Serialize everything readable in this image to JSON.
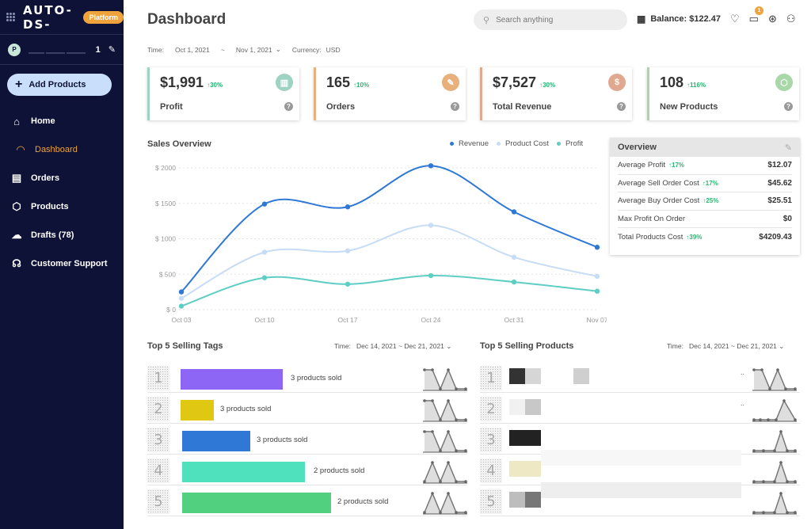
{
  "sidebar": {
    "logo": "AUTO-DS-",
    "badge": "Platform",
    "user_avatar": "P",
    "user_count": "1",
    "add_button": "Add Products",
    "nav": [
      {
        "label": "Home",
        "icon": "home-icon"
      },
      {
        "label": "Dashboard",
        "icon": "gauge-icon"
      },
      {
        "label": "Orders",
        "icon": "orders-icon"
      },
      {
        "label": "Products",
        "icon": "box-icon"
      },
      {
        "label": "Drafts (78)",
        "icon": "cloud-upload-icon"
      },
      {
        "label": "Customer Support",
        "icon": "headset-icon"
      }
    ]
  },
  "header": {
    "title": "Dashboard",
    "search_placeholder": "Search anything",
    "balance": "Balance: $122.47",
    "notifications": "1"
  },
  "filters": {
    "time_label": "Time:",
    "date_from": "Oct 1, 2021",
    "sep": "~",
    "date_to": "Nov 1, 2021",
    "currency_label": "Currency:",
    "currency": "USD"
  },
  "cards": [
    {
      "value": "$1,991",
      "delta": "↑30%",
      "label": "Profit",
      "color": "#9ed2c2",
      "icon": "bar-chart-icon"
    },
    {
      "value": "165",
      "delta": "↑10%",
      "label": "Orders",
      "color": "#e8b07a",
      "icon": "receipt-icon"
    },
    {
      "value": "$7,527",
      "delta": "↑30%",
      "label": "Total Revenue",
      "color": "#e0a88e",
      "icon": "dollar-icon"
    },
    {
      "value": "108",
      "delta": "↑116%",
      "label": "New Products",
      "color": "#a9d8a8",
      "icon": "box-icon"
    }
  ],
  "chart_data": {
    "type": "line",
    "title": "Sales Overview",
    "categories": [
      "Oct 03",
      "Oct 10",
      "Oct 17",
      "Oct 24",
      "Oct 31",
      "Nov 07"
    ],
    "x": [
      0,
      7,
      14,
      21,
      28,
      35
    ],
    "y_ticks": [
      "$ 0",
      "$ 500",
      "$ 1000",
      "$ 1500",
      "$ 2000"
    ],
    "ylim": [
      0,
      2000
    ],
    "series": [
      {
        "name": "Revenue",
        "color": "#2f78d6",
        "values": [
          250,
          1490,
          1450,
          2030,
          1380,
          880
        ]
      },
      {
        "name": "Product Cost",
        "color": "#c7dcf5",
        "values": [
          160,
          810,
          830,
          1190,
          740,
          470
        ]
      },
      {
        "name": "Profit",
        "color": "#5ecec4",
        "values": [
          50,
          450,
          360,
          480,
          390,
          260
        ]
      }
    ],
    "legend_position": "top-right"
  },
  "overview": {
    "title": "Overview",
    "rows": [
      {
        "label": "Average Profit",
        "delta": "↑17%",
        "value": "$12.07"
      },
      {
        "label": "Average Sell Order Cost",
        "delta": "↑17%",
        "value": "$45.62"
      },
      {
        "label": "Average Buy Order Cost",
        "delta": "↑25%",
        "value": "$25.51"
      },
      {
        "label": "Max Profit On Order",
        "delta": "",
        "value": "$0"
      },
      {
        "label": "Total Products Cost",
        "delta": "↑39%",
        "value": "$4209.43"
      }
    ]
  },
  "top_tags": {
    "title": "Top 5 Selling Tags",
    "time_label": "Time:",
    "date_from": "Dec 14, 2021",
    "sep": "~",
    "date_to": "Dec 21, 2021",
    "rows": [
      {
        "rank": "1",
        "color": "#8e66f5",
        "text": "3 products sold",
        "sold": 3
      },
      {
        "rank": "2",
        "color": "#e0c812",
        "text": "3 products sold",
        "sold": 3
      },
      {
        "rank": "3",
        "color": "#2f78d6",
        "text": "3 products sold",
        "sold": 3
      },
      {
        "rank": "4",
        "color": "#4fe0bd",
        "text": "2 products sold",
        "sold": 2
      },
      {
        "rank": "5",
        "color": "#51d17f",
        "text": "2 products sold",
        "sold": 2
      }
    ]
  },
  "top_products": {
    "title": "Top 5 Selling Products",
    "time_label": "Time:",
    "date_from": "Dec 14, 2021",
    "sep": "~",
    "date_to": "Dec 21, 2021",
    "ellipsis": "..",
    "rows": [
      {
        "rank": "1"
      },
      {
        "rank": "2"
      },
      {
        "rank": "3"
      },
      {
        "rank": "4"
      },
      {
        "rank": "5"
      }
    ]
  }
}
